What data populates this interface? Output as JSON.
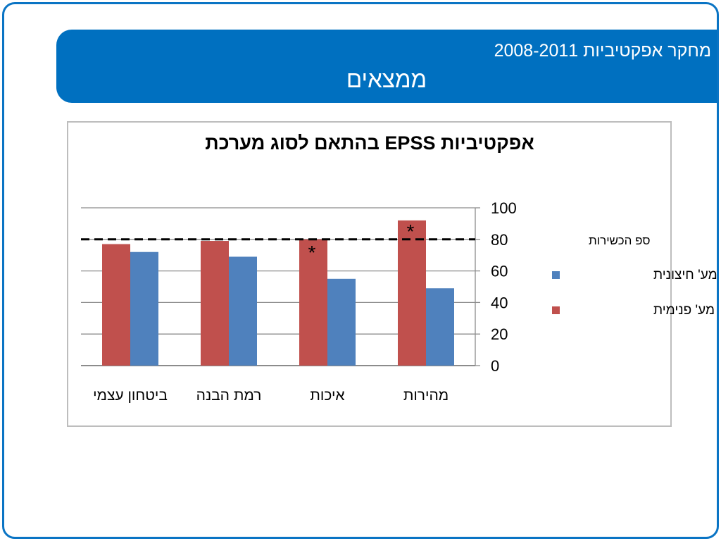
{
  "header": {
    "subtitle": "מחקר אפקטיביות 2008-2011",
    "title": "ממצאים"
  },
  "chart_data": {
    "type": "bar",
    "title": "אפקטיביות EPSS בהתאם לסוג מערכת",
    "categories": [
      "מהירות",
      "איכות",
      "רמת הבנה",
      "ביטחון עצמי"
    ],
    "x_direction": "right-to-left",
    "series": [
      {
        "name": "מע' חיצונית",
        "color": "#4f81bd",
        "values": [
          49,
          55,
          69,
          72
        ]
      },
      {
        "name": "מע' פנימית",
        "color": "#c0504d",
        "values": [
          92,
          80,
          79,
          77
        ]
      }
    ],
    "ylim": [
      0,
      100
    ],
    "yticks": [
      "0",
      "20",
      "40",
      "60",
      "80",
      "100"
    ],
    "y_axis_side": "right",
    "grid": true,
    "legend": "right",
    "threshold": {
      "value": 80,
      "label": "ספ הכשירות",
      "style": "dashed"
    },
    "annotations": [
      {
        "category": "מהירות",
        "series": "מע' פנימית",
        "text": "*"
      },
      {
        "category": "איכות",
        "series": "מע' פנימית",
        "text": "*"
      }
    ]
  }
}
